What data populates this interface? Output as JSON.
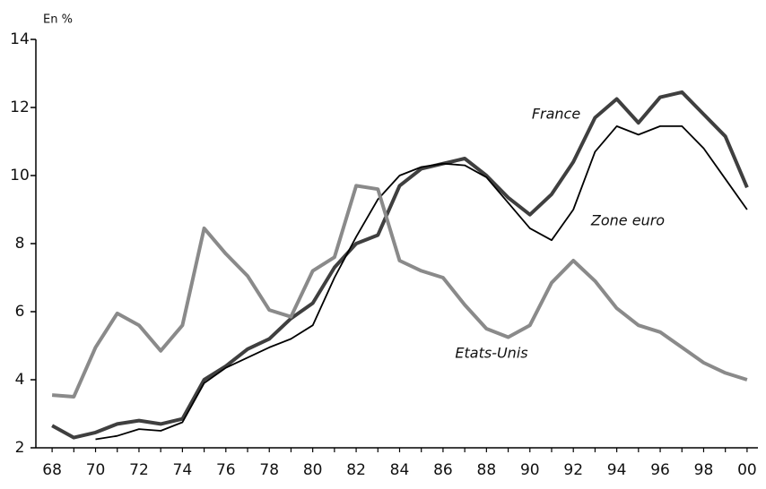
{
  "chart_data": {
    "type": "line",
    "y_label": "En %",
    "categories": [
      "68",
      null,
      "70",
      null,
      "72",
      null,
      "74",
      null,
      "76",
      null,
      "78",
      null,
      "80",
      null,
      "82",
      null,
      "84",
      null,
      "86",
      null,
      "88",
      null,
      "90",
      null,
      "92",
      null,
      "94",
      null,
      "96",
      null,
      "98",
      null,
      "00"
    ],
    "series": [
      {
        "name": "France",
        "color": "#3f3f3f",
        "values": [
          2.65,
          2.3,
          2.45,
          2.7,
          2.8,
          2.7,
          2.85,
          4.0,
          4.4,
          4.9,
          5.2,
          5.8,
          6.25,
          7.3,
          8.0,
          8.25,
          9.7,
          10.2,
          10.35,
          10.5,
          10.0,
          9.35,
          8.85,
          9.45,
          10.4,
          11.7,
          12.25,
          11.55,
          12.3,
          12.45,
          11.8,
          11.15,
          9.65
        ]
      },
      {
        "name": "Zone euro",
        "color": "#000000",
        "values": [
          null,
          null,
          2.25,
          2.35,
          2.55,
          2.5,
          2.75,
          3.9,
          4.35,
          4.65,
          4.95,
          5.2,
          5.6,
          7.0,
          8.2,
          9.3,
          10.0,
          10.25,
          10.35,
          10.3,
          9.95,
          9.2,
          8.45,
          8.1,
          9.0,
          10.7,
          11.45,
          11.2,
          11.45,
          11.45,
          10.8,
          9.9,
          9.0
        ]
      },
      {
        "name": "Etats-Unis",
        "color": "#8a8a8a",
        "values": [
          3.55,
          3.5,
          4.95,
          5.95,
          5.6,
          4.85,
          5.6,
          8.45,
          7.7,
          7.05,
          6.05,
          5.85,
          7.2,
          7.6,
          9.7,
          9.6,
          7.5,
          7.2,
          7.0,
          6.2,
          5.5,
          5.25,
          5.6,
          6.85,
          7.5,
          6.9,
          6.1,
          5.6,
          5.4,
          4.95,
          4.5,
          4.2,
          4.0
        ]
      }
    ],
    "ylim": [
      2,
      14
    ],
    "yticks": [
      2,
      4,
      6,
      8,
      10,
      12,
      14
    ],
    "grid": false
  }
}
